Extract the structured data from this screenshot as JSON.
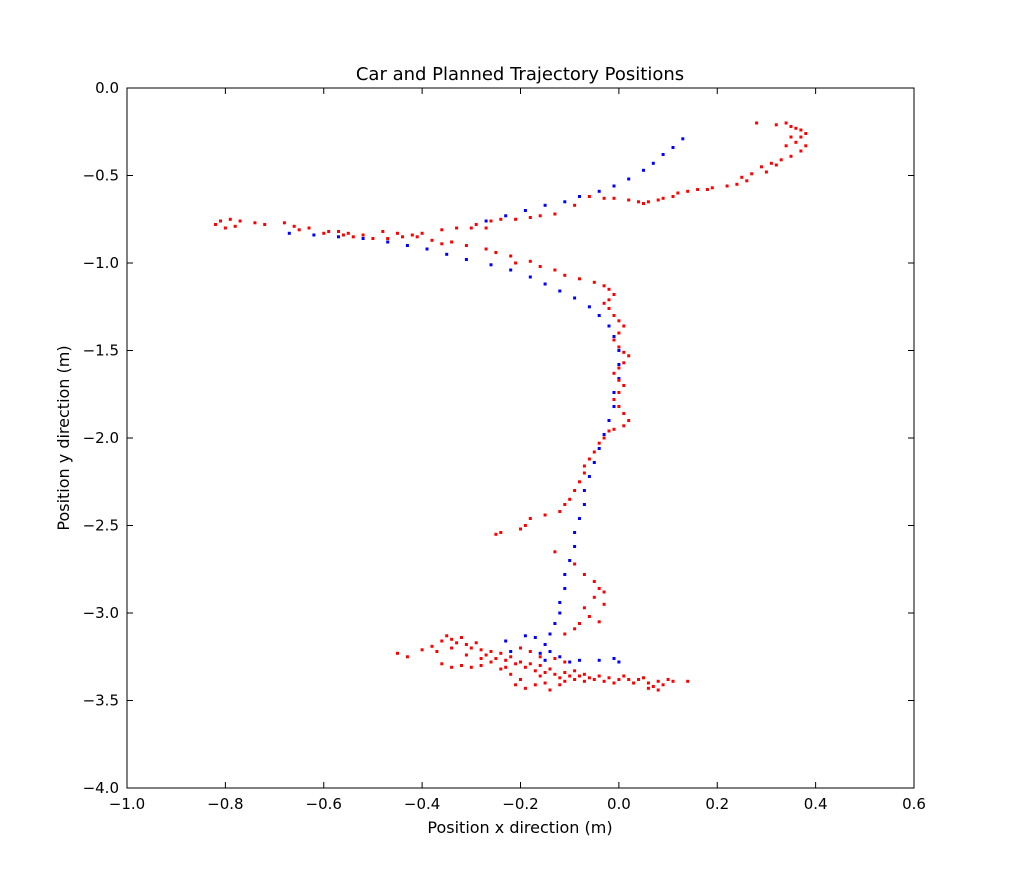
{
  "chart_data": {
    "type": "scatter",
    "title": "Car and Planned Trajectory Positions",
    "xlabel": "Position x direction (m)",
    "ylabel": "Position y direction (m)",
    "xlim": [
      -1.0,
      0.6
    ],
    "ylim": [
      -4.0,
      0.0
    ],
    "xticks": [
      "−1.0",
      "−0.8",
      "−0.6",
      "−0.4",
      "−0.2",
      "0.0",
      "0.2",
      "0.4",
      "0.6"
    ],
    "yticks": [
      "0.0",
      "−0.5",
      "−1.0",
      "−1.5",
      "−2.0",
      "−2.5",
      "−3.0",
      "−3.5",
      "−4.0"
    ],
    "grid": false,
    "series": [
      {
        "color": "#0000ff",
        "points": [
          [
            0.13,
            -0.29
          ],
          [
            0.11,
            -0.34
          ],
          [
            0.09,
            -0.38
          ],
          [
            0.07,
            -0.43
          ],
          [
            0.05,
            -0.47
          ],
          [
            0.02,
            -0.52
          ],
          [
            -0.01,
            -0.56
          ],
          [
            -0.04,
            -0.59
          ],
          [
            -0.08,
            -0.62
          ],
          [
            -0.11,
            -0.65
          ],
          [
            -0.15,
            -0.67
          ],
          [
            -0.19,
            -0.7
          ],
          [
            -0.23,
            -0.73
          ],
          [
            -0.27,
            -0.76
          ],
          [
            -0.67,
            -0.83
          ],
          [
            -0.62,
            -0.84
          ],
          [
            -0.57,
            -0.85
          ],
          [
            -0.52,
            -0.86
          ],
          [
            -0.47,
            -0.88
          ],
          [
            -0.43,
            -0.9
          ],
          [
            -0.39,
            -0.92
          ],
          [
            -0.35,
            -0.95
          ],
          [
            -0.31,
            -0.98
          ],
          [
            -0.26,
            -1.01
          ],
          [
            -0.22,
            -1.04
          ],
          [
            -0.18,
            -1.08
          ],
          [
            -0.15,
            -1.12
          ],
          [
            -0.12,
            -1.16
          ],
          [
            -0.09,
            -1.2
          ],
          [
            -0.06,
            -1.25
          ],
          [
            -0.04,
            -1.3
          ],
          [
            -0.02,
            -1.36
          ],
          [
            -0.01,
            -1.42
          ],
          [
            0.0,
            -1.5
          ],
          [
            0.0,
            -1.58
          ],
          [
            0.0,
            -1.66
          ],
          [
            -0.01,
            -1.74
          ],
          [
            -0.01,
            -1.82
          ],
          [
            -0.02,
            -1.9
          ],
          [
            -0.03,
            -1.98
          ],
          [
            -0.04,
            -2.06
          ],
          [
            -0.05,
            -2.14
          ],
          [
            -0.06,
            -2.22
          ],
          [
            -0.07,
            -2.3
          ],
          [
            -0.07,
            -2.38
          ],
          [
            -0.08,
            -2.46
          ],
          [
            -0.09,
            -2.54
          ],
          [
            -0.09,
            -2.62
          ],
          [
            -0.1,
            -2.7
          ],
          [
            -0.11,
            -2.78
          ],
          [
            -0.11,
            -2.86
          ],
          [
            -0.12,
            -2.94
          ],
          [
            -0.12,
            -3.0
          ],
          [
            -0.13,
            -3.06
          ],
          [
            -0.14,
            -3.12
          ],
          [
            -0.15,
            -3.18
          ],
          [
            -0.16,
            -3.23
          ],
          [
            -0.23,
            -3.16
          ],
          [
            -0.19,
            -3.13
          ],
          [
            -0.17,
            -3.14
          ],
          [
            -0.14,
            -3.22
          ],
          [
            -0.12,
            -3.25
          ],
          [
            -0.1,
            -3.28
          ],
          [
            -0.08,
            -3.27
          ],
          [
            -0.04,
            -3.27
          ],
          [
            -0.01,
            -3.26
          ],
          [
            0.0,
            -3.28
          ],
          [
            -0.22,
            -3.22
          ],
          [
            -0.15,
            -3.27
          ]
        ]
      },
      {
        "color": "#ff0000",
        "points": [
          [
            0.28,
            -0.2
          ],
          [
            0.32,
            -0.21
          ],
          [
            0.34,
            -0.2
          ],
          [
            0.35,
            -0.22
          ],
          [
            0.36,
            -0.23
          ],
          [
            0.37,
            -0.24
          ],
          [
            0.38,
            -0.26
          ],
          [
            0.37,
            -0.28
          ],
          [
            0.35,
            -0.28
          ],
          [
            0.36,
            -0.31
          ],
          [
            0.38,
            -0.33
          ],
          [
            0.34,
            -0.33
          ],
          [
            0.37,
            -0.36
          ],
          [
            0.35,
            -0.39
          ],
          [
            0.33,
            -0.41
          ],
          [
            0.31,
            -0.43
          ],
          [
            0.29,
            -0.45
          ],
          [
            0.32,
            -0.44
          ],
          [
            0.3,
            -0.48
          ],
          [
            0.27,
            -0.49
          ],
          [
            0.25,
            -0.51
          ],
          [
            0.26,
            -0.53
          ],
          [
            0.24,
            -0.55
          ],
          [
            0.22,
            -0.56
          ],
          [
            0.19,
            -0.57
          ],
          [
            0.18,
            -0.58
          ],
          [
            0.16,
            -0.58
          ],
          [
            0.14,
            -0.59
          ],
          [
            0.12,
            -0.6
          ],
          [
            0.11,
            -0.62
          ],
          [
            0.09,
            -0.63
          ],
          [
            0.08,
            -0.64
          ],
          [
            0.06,
            -0.65
          ],
          [
            0.05,
            -0.66
          ],
          [
            0.04,
            -0.65
          ],
          [
            0.02,
            -0.64
          ],
          [
            -0.01,
            -0.63
          ],
          [
            -0.03,
            -0.63
          ],
          [
            -0.06,
            -0.62
          ],
          [
            -0.09,
            -0.67
          ],
          [
            -0.13,
            -0.72
          ],
          [
            -0.16,
            -0.73
          ],
          [
            -0.18,
            -0.74
          ],
          [
            -0.21,
            -0.75
          ],
          [
            -0.24,
            -0.75
          ],
          [
            -0.26,
            -0.76
          ],
          [
            -0.29,
            -0.78
          ],
          [
            -0.27,
            -0.8
          ],
          [
            -0.3,
            -0.8
          ],
          [
            -0.33,
            -0.8
          ],
          [
            -0.36,
            -0.81
          ],
          [
            -0.4,
            -0.83
          ],
          [
            -0.42,
            -0.84
          ],
          [
            -0.44,
            -0.85
          ],
          [
            -0.47,
            -0.86
          ],
          [
            -0.5,
            -0.86
          ],
          [
            -0.52,
            -0.84
          ],
          [
            -0.55,
            -0.83
          ],
          [
            -0.57,
            -0.82
          ],
          [
            -0.59,
            -0.82
          ],
          [
            -0.63,
            -0.8
          ],
          [
            -0.66,
            -0.79
          ],
          [
            -0.68,
            -0.77
          ],
          [
            -0.72,
            -0.78
          ],
          [
            -0.74,
            -0.77
          ],
          [
            -0.77,
            -0.76
          ],
          [
            -0.79,
            -0.75
          ],
          [
            -0.81,
            -0.76
          ],
          [
            -0.82,
            -0.78
          ],
          [
            -0.8,
            -0.8
          ],
          [
            -0.78,
            -0.79
          ],
          [
            -0.65,
            -0.81
          ],
          [
            -0.6,
            -0.83
          ],
          [
            -0.56,
            -0.84
          ],
          [
            -0.54,
            -0.85
          ],
          [
            -0.48,
            -0.82
          ],
          [
            -0.45,
            -0.83
          ],
          [
            -0.41,
            -0.85
          ],
          [
            -0.38,
            -0.87
          ],
          [
            -0.36,
            -0.89
          ],
          [
            -0.34,
            -0.88
          ],
          [
            -0.31,
            -0.9
          ],
          [
            -0.27,
            -0.92
          ],
          [
            -0.25,
            -0.94
          ],
          [
            -0.22,
            -0.96
          ],
          [
            -0.21,
            -1.0
          ],
          [
            -0.18,
            -0.99
          ],
          [
            -0.16,
            -1.02
          ],
          [
            -0.13,
            -1.04
          ],
          [
            -0.11,
            -1.07
          ],
          [
            -0.08,
            -1.09
          ],
          [
            -0.05,
            -1.11
          ],
          [
            -0.03,
            -1.13
          ],
          [
            -0.02,
            -1.15
          ],
          [
            -0.01,
            -1.18
          ],
          [
            -0.02,
            -1.21
          ],
          [
            -0.03,
            -1.23
          ],
          [
            -0.02,
            -1.26
          ],
          [
            -0.01,
            -1.3
          ],
          [
            0.0,
            -1.33
          ],
          [
            0.01,
            -1.36
          ],
          [
            0.0,
            -1.4
          ],
          [
            -0.01,
            -1.44
          ],
          [
            0.0,
            -1.48
          ],
          [
            0.01,
            -1.51
          ],
          [
            0.02,
            -1.53
          ],
          [
            0.01,
            -1.57
          ],
          [
            0.0,
            -1.6
          ],
          [
            -0.01,
            -1.63
          ],
          [
            0.0,
            -1.67
          ],
          [
            0.01,
            -1.7
          ],
          [
            0.0,
            -1.74
          ],
          [
            -0.01,
            -1.78
          ],
          [
            0.0,
            -1.82
          ],
          [
            0.01,
            -1.86
          ],
          [
            0.02,
            -1.9
          ],
          [
            0.01,
            -1.93
          ],
          [
            -0.01,
            -1.95
          ],
          [
            -0.02,
            -1.96
          ],
          [
            -0.03,
            -2.0
          ],
          [
            -0.04,
            -2.03
          ],
          [
            -0.05,
            -2.08
          ],
          [
            -0.06,
            -2.12
          ],
          [
            -0.07,
            -2.16
          ],
          [
            -0.07,
            -2.2
          ],
          [
            -0.08,
            -2.25
          ],
          [
            -0.09,
            -2.3
          ],
          [
            -0.1,
            -2.35
          ],
          [
            -0.11,
            -2.38
          ],
          [
            -0.12,
            -2.42
          ],
          [
            -0.15,
            -2.44
          ],
          [
            -0.18,
            -2.46
          ],
          [
            -0.19,
            -2.5
          ],
          [
            -0.2,
            -2.52
          ],
          [
            -0.24,
            -2.54
          ],
          [
            -0.25,
            -2.55
          ],
          [
            -0.13,
            -2.65
          ],
          [
            -0.09,
            -2.72
          ],
          [
            -0.07,
            -2.78
          ],
          [
            -0.05,
            -2.82
          ],
          [
            -0.04,
            -2.86
          ],
          [
            -0.05,
            -2.91
          ],
          [
            -0.07,
            -2.97
          ],
          [
            -0.06,
            -3.02
          ],
          [
            -0.08,
            -3.06
          ],
          [
            -0.09,
            -3.09
          ],
          [
            -0.11,
            -3.12
          ],
          [
            -0.04,
            -3.05
          ],
          [
            -0.03,
            -2.95
          ],
          [
            -0.03,
            -2.88
          ],
          [
            -0.45,
            -3.23
          ],
          [
            -0.43,
            -3.25
          ],
          [
            -0.4,
            -3.21
          ],
          [
            -0.38,
            -3.19
          ],
          [
            -0.36,
            -3.16
          ],
          [
            -0.35,
            -3.13
          ],
          [
            -0.34,
            -3.15
          ],
          [
            -0.33,
            -3.17
          ],
          [
            -0.32,
            -3.14
          ],
          [
            -0.31,
            -3.18
          ],
          [
            -0.3,
            -3.2
          ],
          [
            -0.29,
            -3.17
          ],
          [
            -0.28,
            -3.21
          ],
          [
            -0.27,
            -3.24
          ],
          [
            -0.26,
            -3.22
          ],
          [
            -0.25,
            -3.26
          ],
          [
            -0.24,
            -3.23
          ],
          [
            -0.23,
            -3.27
          ],
          [
            -0.22,
            -3.25
          ],
          [
            -0.21,
            -3.29
          ],
          [
            -0.2,
            -3.28
          ],
          [
            -0.19,
            -3.31
          ],
          [
            -0.18,
            -3.29
          ],
          [
            -0.17,
            -3.33
          ],
          [
            -0.16,
            -3.3
          ],
          [
            -0.15,
            -3.34
          ],
          [
            -0.14,
            -3.32
          ],
          [
            -0.13,
            -3.35
          ],
          [
            -0.12,
            -3.37
          ],
          [
            -0.11,
            -3.34
          ],
          [
            -0.1,
            -3.36
          ],
          [
            -0.09,
            -3.38
          ],
          [
            -0.08,
            -3.36
          ],
          [
            -0.07,
            -3.39
          ],
          [
            -0.06,
            -3.37
          ],
          [
            -0.05,
            -3.38
          ],
          [
            -0.04,
            -3.36
          ],
          [
            -0.03,
            -3.39
          ],
          [
            -0.02,
            -3.37
          ],
          [
            -0.01,
            -3.4
          ],
          [
            0.0,
            -3.38
          ],
          [
            0.01,
            -3.36
          ],
          [
            0.02,
            -3.38
          ],
          [
            0.03,
            -3.4
          ],
          [
            0.04,
            -3.38
          ],
          [
            0.05,
            -3.37
          ],
          [
            0.06,
            -3.4
          ],
          [
            0.07,
            -3.42
          ],
          [
            0.08,
            -3.39
          ],
          [
            0.09,
            -3.41
          ],
          [
            0.1,
            -3.38
          ],
          [
            0.11,
            -3.39
          ],
          [
            0.14,
            -3.39
          ],
          [
            0.08,
            -3.44
          ],
          [
            0.06,
            -3.43
          ],
          [
            -0.36,
            -3.29
          ],
          [
            -0.34,
            -3.31
          ],
          [
            -0.32,
            -3.3
          ],
          [
            -0.3,
            -3.31
          ],
          [
            -0.28,
            -3.3
          ],
          [
            -0.26,
            -3.28
          ],
          [
            -0.24,
            -3.32
          ],
          [
            -0.22,
            -3.35
          ],
          [
            -0.2,
            -3.38
          ],
          [
            -0.21,
            -3.41
          ],
          [
            -0.19,
            -3.43
          ],
          [
            -0.17,
            -3.41
          ],
          [
            -0.15,
            -3.4
          ],
          [
            -0.14,
            -3.44
          ],
          [
            -0.12,
            -3.41
          ],
          [
            -0.11,
            -3.39
          ],
          [
            -0.13,
            -3.26
          ],
          [
            -0.11,
            -3.28
          ],
          [
            -0.16,
            -3.25
          ],
          [
            -0.18,
            -3.22
          ],
          [
            -0.2,
            -3.2
          ],
          [
            -0.34,
            -3.2
          ],
          [
            -0.37,
            -3.22
          ],
          [
            -0.31,
            -3.24
          ],
          [
            -0.28,
            -3.26
          ],
          [
            -0.23,
            -3.31
          ],
          [
            -0.16,
            -3.36
          ],
          [
            -0.09,
            -3.33
          ],
          [
            -0.07,
            -3.35
          ]
        ]
      }
    ]
  }
}
